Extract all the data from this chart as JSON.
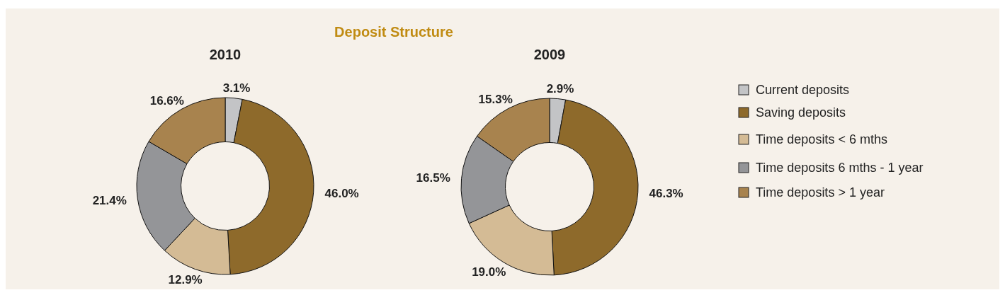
{
  "chart_data": [
    {
      "type": "donut",
      "title": "Deposit Structure",
      "subtitle": "2010",
      "categories": [
        "Current deposits",
        "Saving deposits",
        "Time deposits < 6 mths",
        "Time deposits 6 mths - 1 year",
        "Time deposits > 1 year"
      ],
      "values": [
        3.1,
        46.0,
        12.9,
        21.4,
        16.6
      ],
      "value_labels": [
        "3.1%",
        "46.0%",
        "12.9%",
        "21.4%",
        "16.6%"
      ],
      "colors": [
        "#c3c4c6",
        "#8e6a2b",
        "#d4bb95",
        "#949598",
        "#a8834e"
      ],
      "legend": "right"
    },
    {
      "type": "donut",
      "title": "2009",
      "values": [
        2.9,
        46.3,
        19.0,
        16.5,
        15.3
      ],
      "value_labels": [
        "2.9%",
        "46.3%",
        "19.0%",
        "16.5%",
        "15.3%"
      ],
      "colors": [
        "#c3c4c6",
        "#8e6a2b",
        "#d4bb95",
        "#949598",
        "#a8834e"
      ]
    }
  ]
}
